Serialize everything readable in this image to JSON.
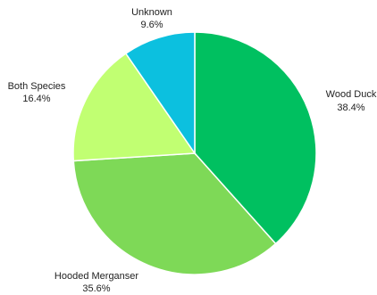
{
  "chart_data": {
    "type": "pie",
    "title": "",
    "slices": [
      {
        "label": "Wood Duck",
        "value": 38.4,
        "pct": "38.4%",
        "color": "#00C060"
      },
      {
        "label": "Hooded Merganser",
        "value": 35.6,
        "pct": "35.6%",
        "color": "#7ED957"
      },
      {
        "label": "Both Species",
        "value": 16.4,
        "pct": "16.4%",
        "color": "#C1FF72"
      },
      {
        "label": "Unknown",
        "value": 9.6,
        "pct": "9.6%",
        "color": "#0CC0DF"
      }
    ],
    "legend": "none",
    "data_labels": "outside"
  }
}
